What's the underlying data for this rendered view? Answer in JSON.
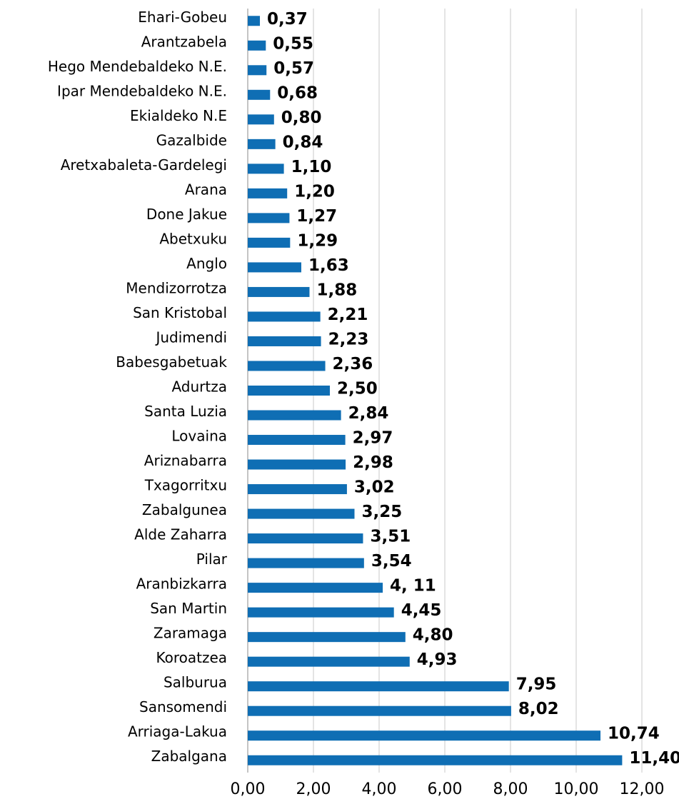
{
  "chart_data": {
    "type": "bar",
    "orientation": "horizontal",
    "categories": [
      "Ehari-Gobeu",
      "Arantzabela",
      "Hego Mendebaldeko N.E.",
      "Ipar Mendebaldeko N.E.",
      "Ekialdeko N.E",
      "Gazalbide",
      "Aretxabaleta-Gardelegi",
      "Arana",
      "Done Jakue",
      "Abetxuku",
      "Anglo",
      "Mendizorrotza",
      "San Kristobal",
      "Judimendi",
      "Babesgabetuak",
      "Adurtza",
      "Santa Luzia",
      "Lovaina",
      "Ariznabarra",
      "Txagorritxu",
      "Zabalgunea",
      "Alde Zaharra",
      "Pilar",
      "Aranbizkarra",
      "San Martin",
      "Zaramaga",
      "Koroatzea",
      "Salburua",
      "Sansomendi",
      "Arriaga-Lakua",
      "Zabalgana"
    ],
    "values": [
      0.37,
      0.55,
      0.57,
      0.68,
      0.8,
      0.84,
      1.1,
      1.2,
      1.27,
      1.29,
      1.63,
      1.88,
      2.21,
      2.23,
      2.36,
      2.5,
      2.84,
      2.97,
      2.98,
      3.02,
      3.25,
      3.51,
      3.54,
      4.11,
      4.45,
      4.8,
      4.93,
      7.95,
      8.02,
      10.74,
      11.4
    ],
    "value_labels": [
      "0,37",
      "0,55",
      "0,57",
      "0,68",
      "0,80",
      "0,84",
      "1,10",
      "1,20",
      "1,27",
      "1,29",
      "1,63",
      "1,88",
      "2,21",
      "2,23",
      "2,36",
      "2,50",
      "2,84",
      "2,97",
      "2,98",
      "3,02",
      "3,25",
      "3,51",
      "3,54",
      "4, 11",
      "4,45",
      "4,80",
      "4,93",
      "7,95",
      "8,02",
      "10,74",
      "11,40"
    ],
    "color": "#0f6eb4",
    "xlim": [
      0,
      12
    ],
    "xticks": [
      {
        "value": 0,
        "label": "0,00"
      },
      {
        "value": 2,
        "label": "2,00"
      },
      {
        "value": 4,
        "label": "4,00"
      },
      {
        "value": 6,
        "label": "6,00"
      },
      {
        "value": 8,
        "label": "8,00"
      },
      {
        "value": 10,
        "label": "10,00"
      },
      {
        "value": 12,
        "label": "12,00"
      }
    ],
    "grid": true
  }
}
